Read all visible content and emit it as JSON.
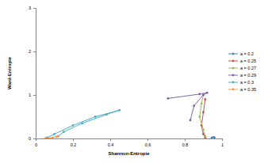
{
  "chart_data": {
    "type": "scatter",
    "x_label": "Shannon-Entropie",
    "y_label": "Ward-Entropie",
    "xlim": [
      0,
      1
    ],
    "xticks": [
      0,
      {
        "value": 0.2,
        "label": "0,2"
      },
      {
        "value": 0.4,
        "label": "0,4"
      },
      {
        "value": 0.6,
        "label": "0,6"
      },
      {
        "value": 0.8,
        "label": "0,8"
      },
      1
    ],
    "ylim": [
      0,
      3
    ],
    "yticks": [
      0,
      1,
      2,
      3
    ],
    "grid": false,
    "legend": "right",
    "marker": "circle",
    "line_style": "solid",
    "series": [
      {
        "name": "a = 0.2",
        "color": "#4f81bd",
        "x": [
          0.945,
          0.955,
          0.96
        ],
        "values": [
          0.02,
          0.03,
          0.02
        ]
      },
      {
        "name": "a = 0.25",
        "color": "#c0504d",
        "x": [
          0.91,
          0.9,
          0.89,
          0.9,
          0.91
        ],
        "values": [
          0.9,
          0.6,
          0.3,
          0.1,
          0.02
        ]
      },
      {
        "name": "a = 0.27",
        "color": "#9bbb59",
        "x": [
          0.9,
          0.89,
          0.88,
          0.9,
          0.91
        ],
        "values": [
          1.0,
          0.8,
          0.5,
          0.2,
          0.05
        ]
      },
      {
        "name": "a = 0.29",
        "color": "#8064a2",
        "x": [
          0.71,
          0.88,
          0.92,
          0.9,
          0.85,
          0.83
        ],
        "values": [
          0.92,
          1.02,
          1.05,
          1.0,
          0.75,
          0.42
        ]
      },
      {
        "name": "a = 0.3",
        "color": "#4bacc6",
        "x": [
          0.06,
          0.1,
          0.2,
          0.32,
          0.45,
          0.38,
          0.25,
          0.15,
          0.12
        ],
        "values": [
          0.02,
          0.1,
          0.3,
          0.5,
          0.65,
          0.55,
          0.35,
          0.15,
          0.05
        ]
      },
      {
        "name": "a = 0.35",
        "color": "#f79646",
        "x": [
          0.05,
          0.07,
          0.09,
          0.11,
          0.12
        ],
        "values": [
          0.0,
          0.01,
          0.02,
          0.04,
          0.05
        ]
      }
    ]
  }
}
